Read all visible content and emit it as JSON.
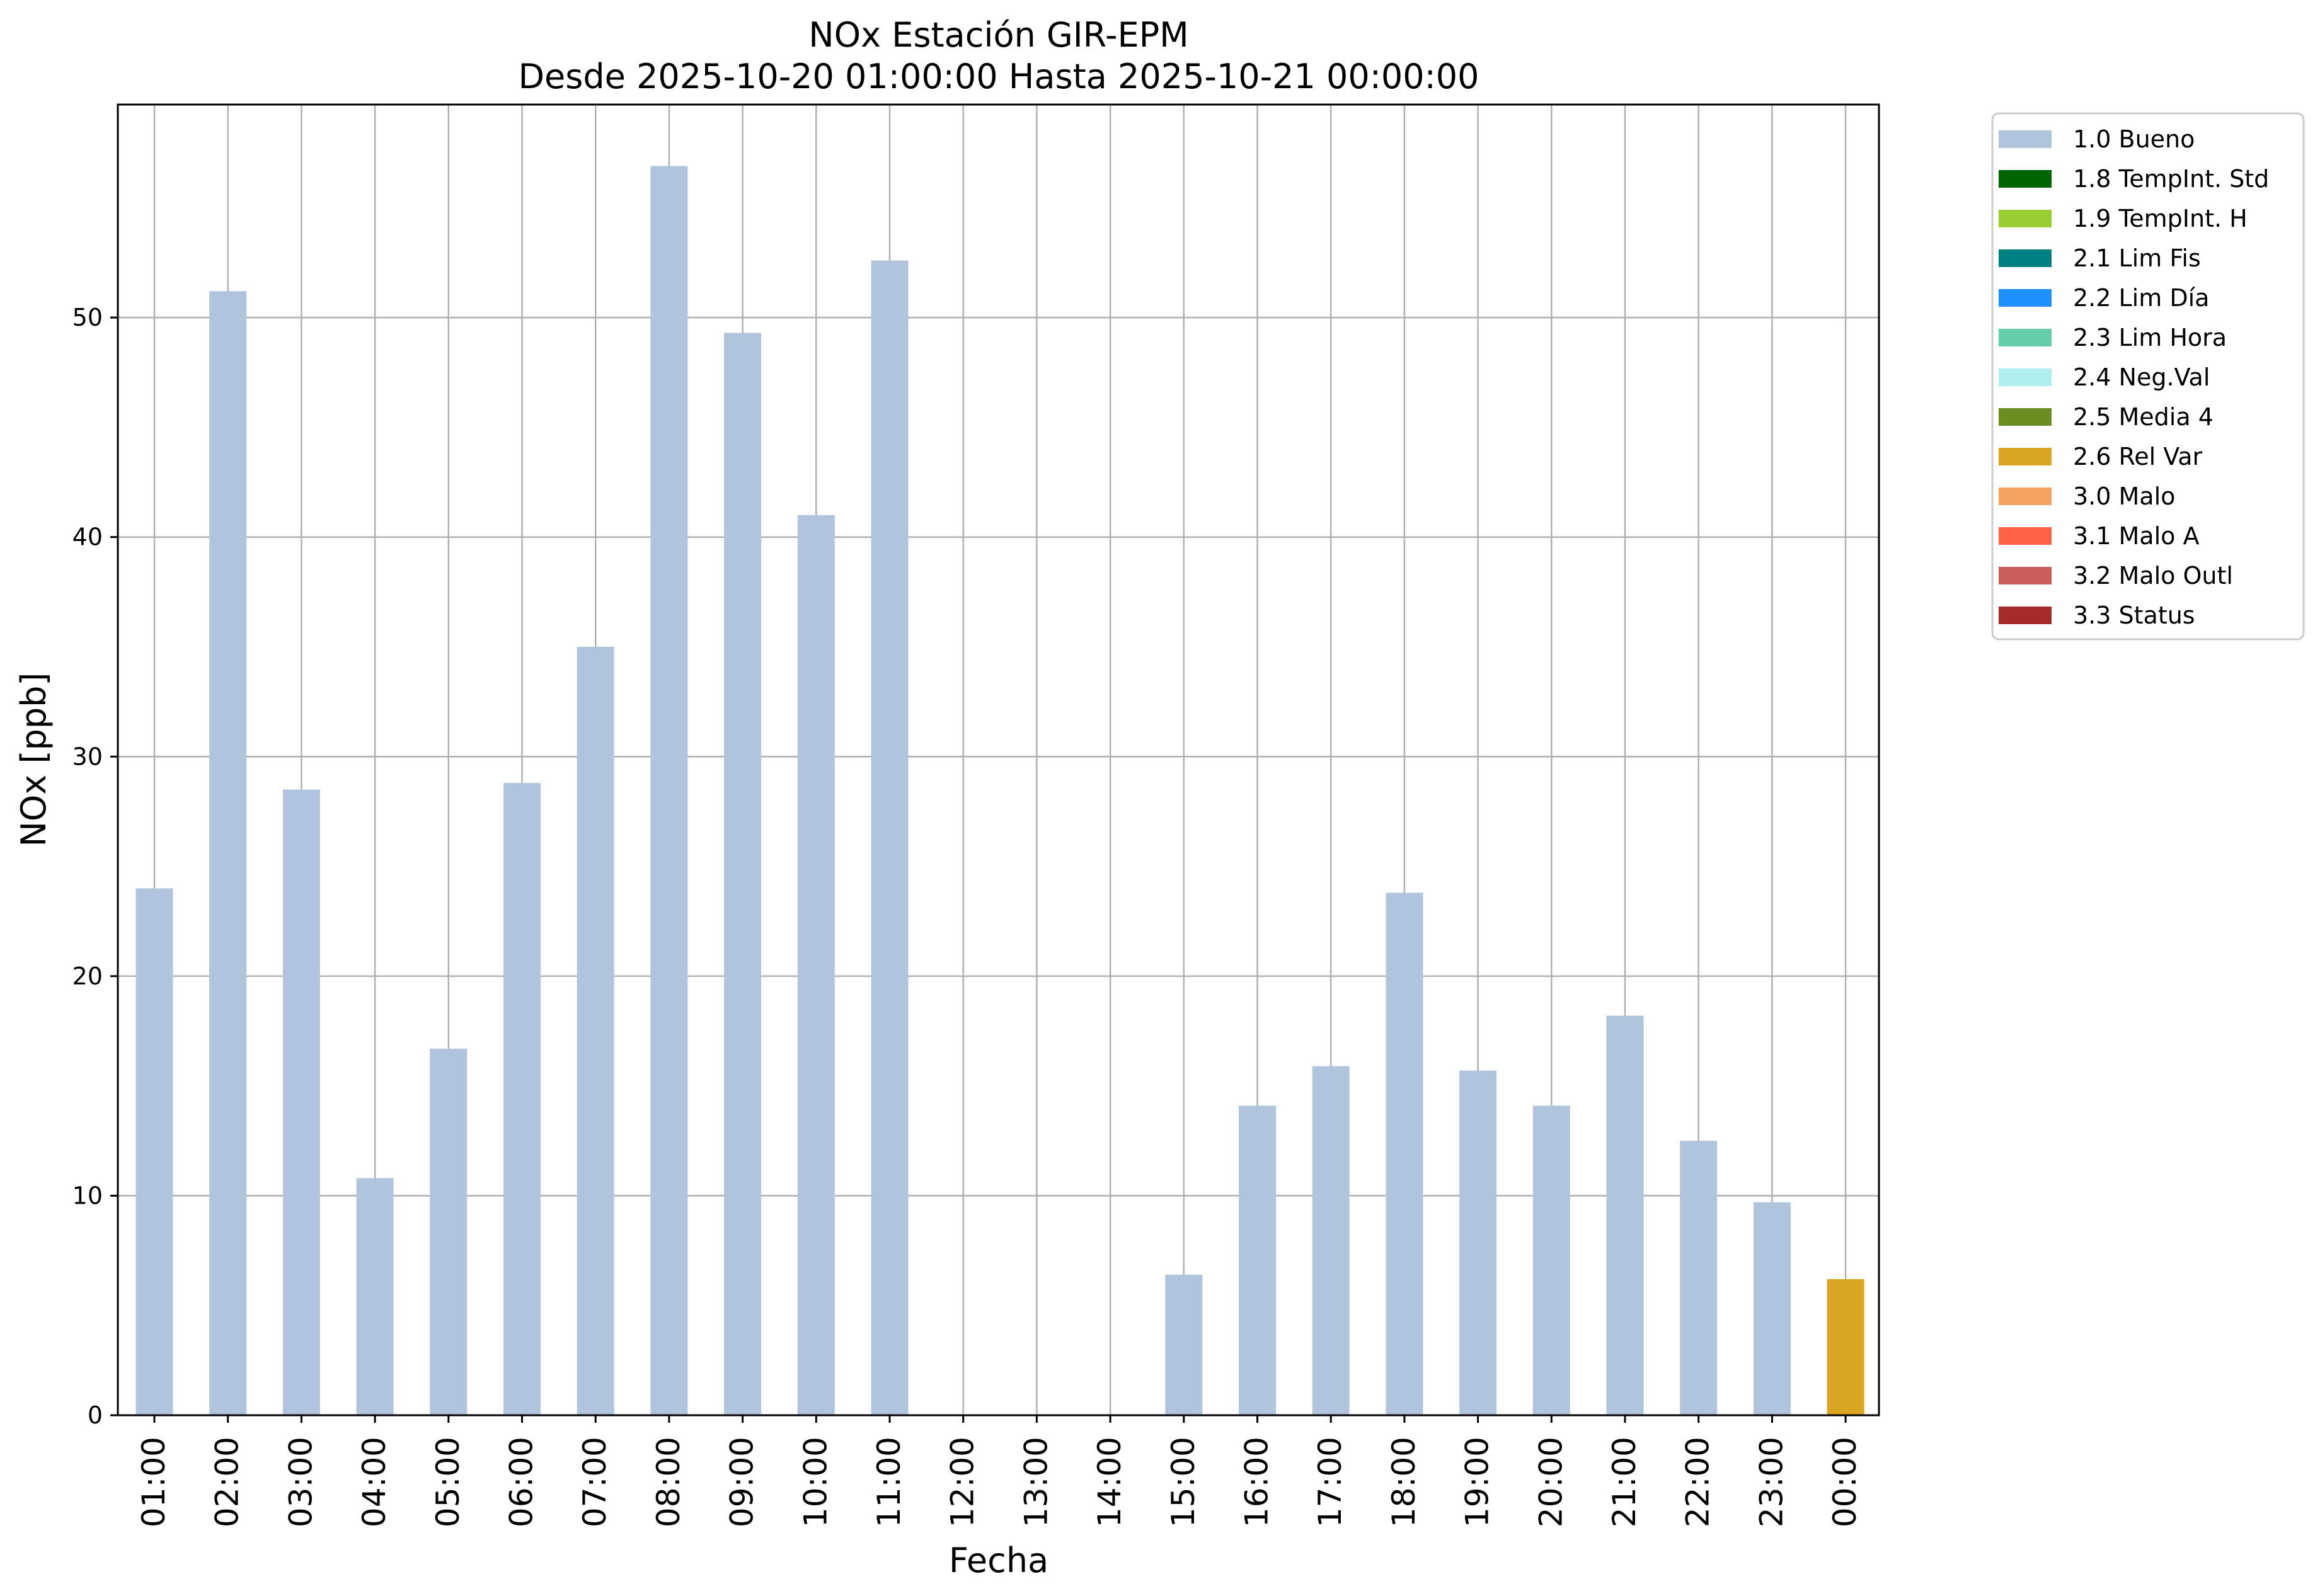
{
  "chart_data": {
    "type": "bar",
    "title": "NOx Estación GIR-EPM",
    "subtitle": "Desde 2025-10-20 01:00:00 Hasta 2025-10-21 00:00:00",
    "xlabel": "Fecha",
    "ylabel": "NOx [ppb]",
    "ylim": [
      0,
      59.7
    ],
    "yticks": [
      0,
      10,
      20,
      30,
      40,
      50
    ],
    "grid": true,
    "legend_position": "outside-top-right",
    "categories": [
      "01:00",
      "02:00",
      "03:00",
      "04:00",
      "05:00",
      "06:00",
      "07:00",
      "08:00",
      "09:00",
      "10:00",
      "11:00",
      "12:00",
      "13:00",
      "14:00",
      "15:00",
      "16:00",
      "17:00",
      "18:00",
      "19:00",
      "20:00",
      "21:00",
      "22:00",
      "23:00",
      "00:00"
    ],
    "values": [
      24.0,
      51.2,
      28.5,
      10.8,
      16.7,
      28.8,
      35.0,
      56.9,
      49.3,
      41.0,
      52.6,
      null,
      null,
      null,
      6.4,
      14.1,
      15.9,
      23.8,
      15.7,
      14.1,
      18.2,
      12.5,
      9.7,
      6.2
    ],
    "flags": [
      "1.0 Bueno",
      "1.0 Bueno",
      "1.0 Bueno",
      "1.0 Bueno",
      "1.0 Bueno",
      "1.0 Bueno",
      "1.0 Bueno",
      "1.0 Bueno",
      "1.0 Bueno",
      "1.0 Bueno",
      "1.0 Bueno",
      null,
      null,
      null,
      "1.0 Bueno",
      "1.0 Bueno",
      "1.0 Bueno",
      "1.0 Bueno",
      "1.0 Bueno",
      "1.0 Bueno",
      "1.0 Bueno",
      "1.0 Bueno",
      "1.0 Bueno",
      "2.6 Rel Var"
    ],
    "legend": [
      {
        "label": "1.0 Bueno",
        "color": "#b0c4de"
      },
      {
        "label": "1.8 TempInt. Std",
        "color": "#006400"
      },
      {
        "label": "1.9 TempInt. H",
        "color": "#9acd32"
      },
      {
        "label": "2.1 Lim Fis",
        "color": "#008080"
      },
      {
        "label": "2.2 Lim Día",
        "color": "#1e90ff"
      },
      {
        "label": "2.3 Lim Hora",
        "color": "#66cdaa"
      },
      {
        "label": "2.4 Neg.Val",
        "color": "#afeeee"
      },
      {
        "label": "2.5 Media 4",
        "color": "#6b8e23"
      },
      {
        "label": "2.6 Rel Var",
        "color": "#daa520"
      },
      {
        "label": "3.0 Malo",
        "color": "#f4a460"
      },
      {
        "label": "3.1 Malo A",
        "color": "#ff6347"
      },
      {
        "label": "3.2 Malo Outl",
        "color": "#cd5c5c"
      },
      {
        "label": "3.3 Status",
        "color": "#a52a2a"
      }
    ]
  }
}
